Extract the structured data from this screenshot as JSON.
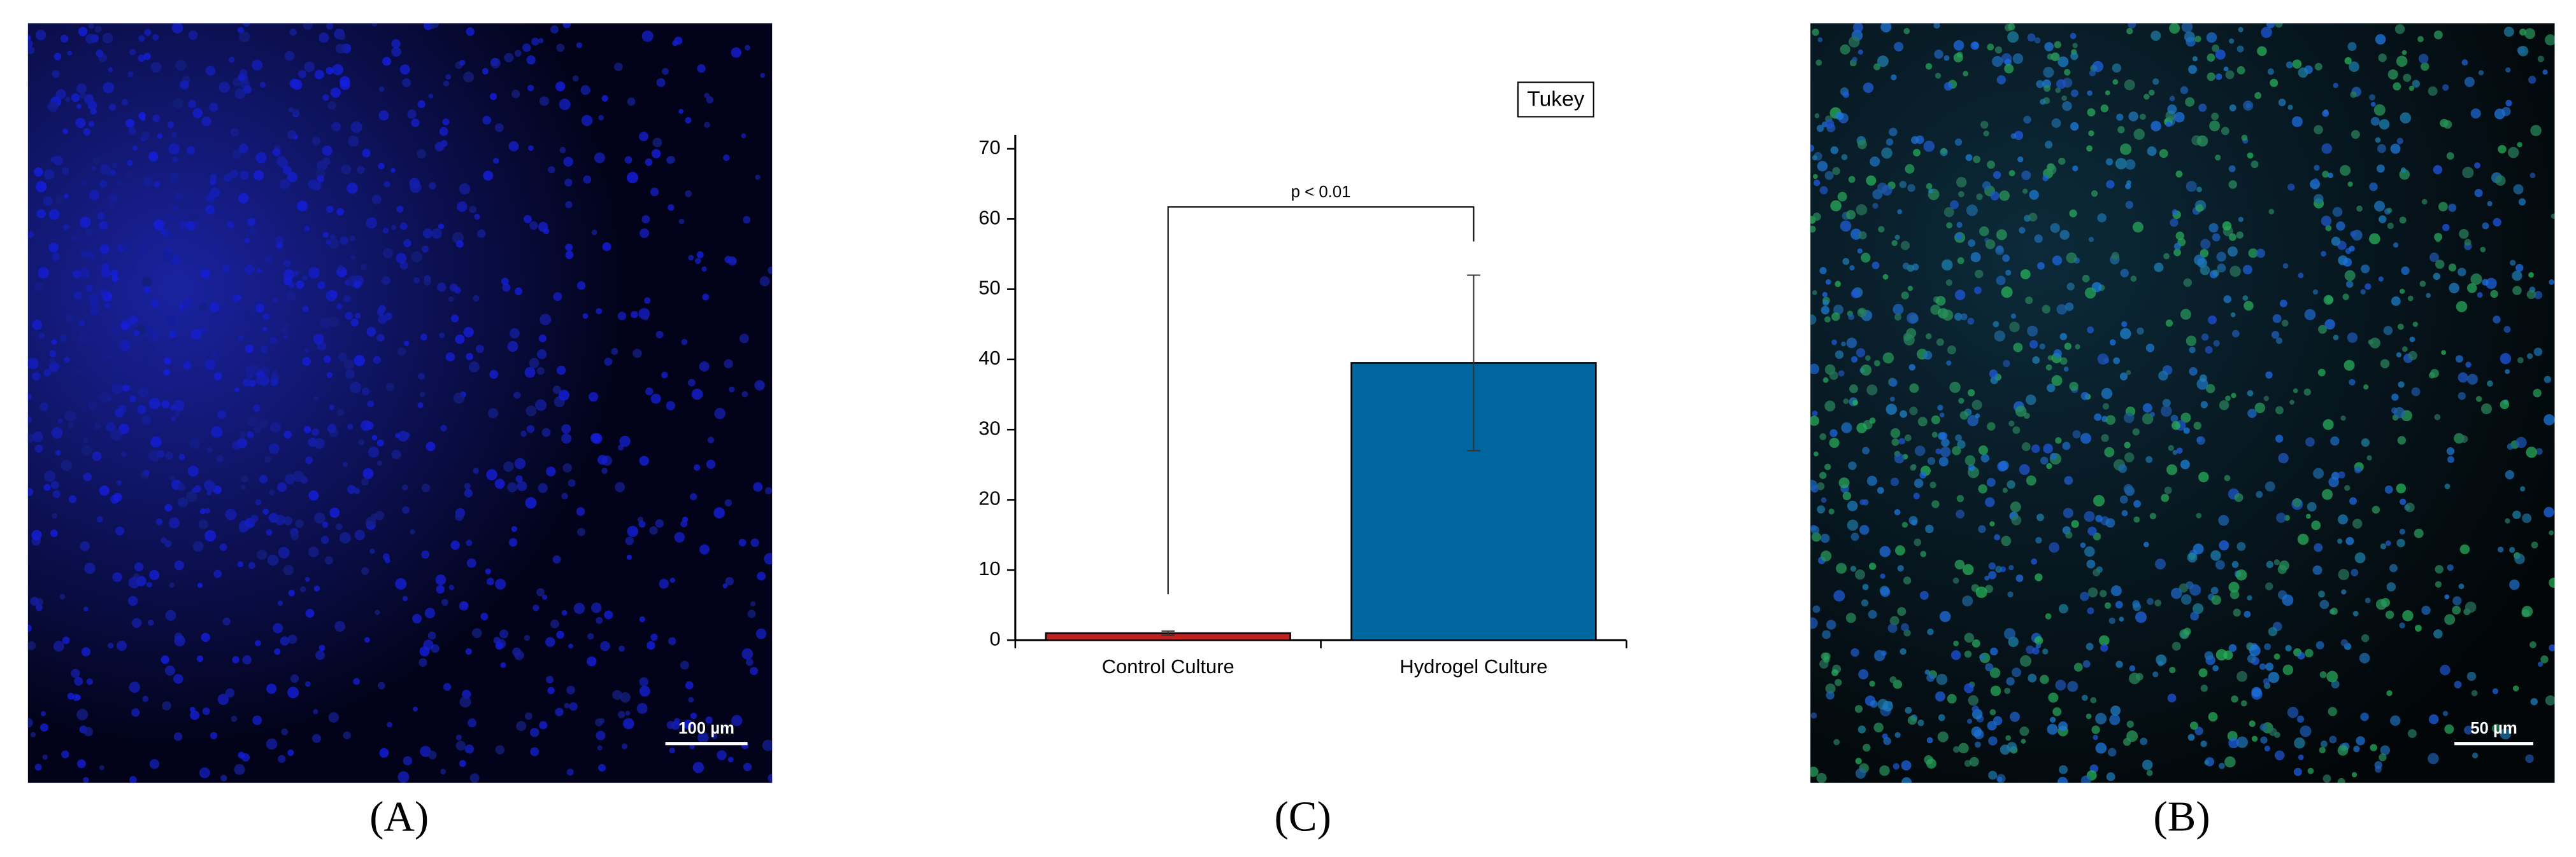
{
  "panels": {
    "a": {
      "label": "(A)",
      "scale_bar": "100 µm"
    },
    "b": {
      "label": "(B)",
      "scale_bar": "50 µm"
    },
    "c": {
      "label": "(C)"
    }
  },
  "chart_data": {
    "type": "bar",
    "categories": [
      "Control Culture",
      "Hydrogel Culture"
    ],
    "values": [
      1,
      39.5
    ],
    "errors": [
      0.3,
      12.5
    ],
    "colors": [
      "#c0201f",
      "#0066a0"
    ],
    "ylim": [
      0,
      72
    ],
    "yticks": [
      0,
      10,
      20,
      30,
      40,
      50,
      60,
      70
    ],
    "legend_box": "Tukey",
    "annotation": "p < 0.01"
  }
}
